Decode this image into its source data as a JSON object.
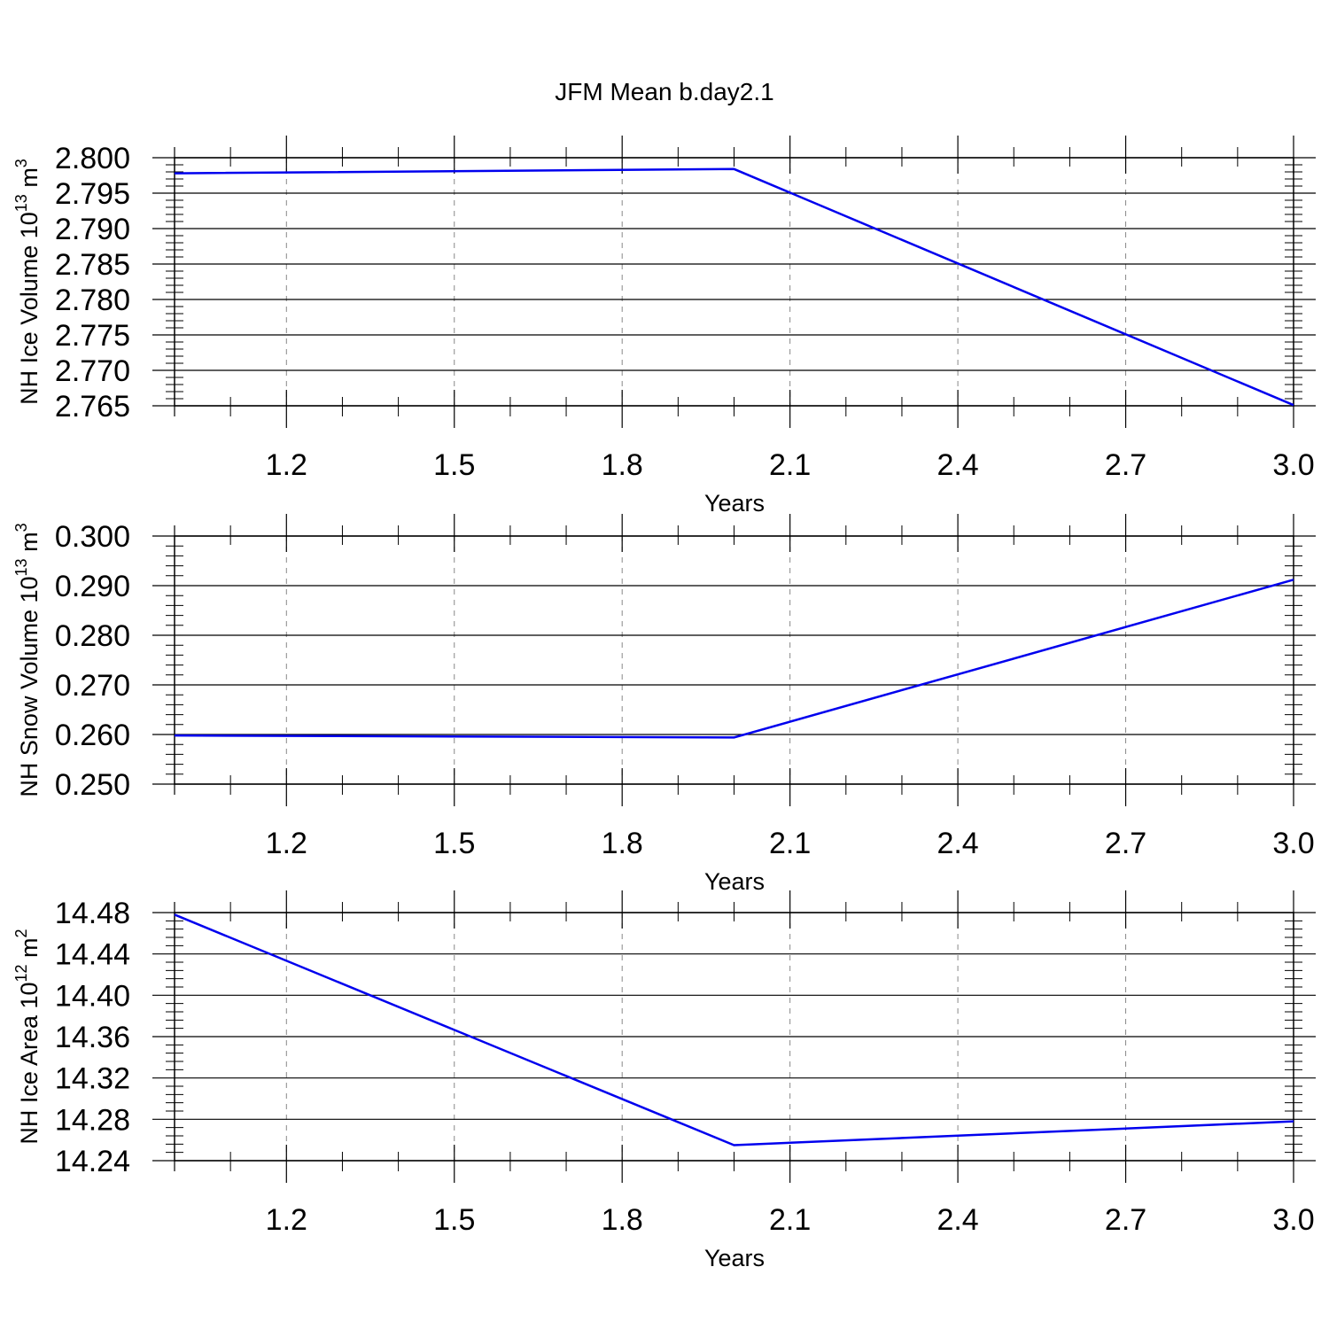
{
  "title": "JFM Mean b.day2.1",
  "colors": {
    "line": "#0000ee",
    "axis": "#000000",
    "grid": "#888888"
  },
  "chart_data": [
    {
      "type": "line",
      "xlabel": "Years",
      "ylabel": "NH Ice Volume 10",
      "ylabel_exp": "13",
      "ylabel_unit": " m",
      "ylabel_unit_exp": "3",
      "xlim": [
        1.0,
        3.0
      ],
      "ylim": [
        2.765,
        2.8
      ],
      "x_ticks": [
        1.2,
        1.5,
        1.8,
        2.1,
        2.4,
        2.7,
        3.0
      ],
      "x_tick_labels": [
        "1.2",
        "1.5",
        "1.8",
        "2.1",
        "2.4",
        "2.7",
        "3.0"
      ],
      "y_ticks": [
        2.765,
        2.77,
        2.775,
        2.78,
        2.785,
        2.79,
        2.795,
        2.8
      ],
      "y_tick_labels": [
        "2.765",
        "2.770",
        "2.775",
        "2.780",
        "2.785",
        "2.790",
        "2.795",
        "2.800"
      ],
      "grid": "x-dashed",
      "series": [
        {
          "x": [
            1.0,
            2.0,
            3.0
          ],
          "y": [
            2.7978,
            2.7984,
            2.7651
          ]
        }
      ]
    },
    {
      "type": "line",
      "xlabel": "Years",
      "ylabel": "NH Snow Volume 10",
      "ylabel_exp": "13",
      "ylabel_unit": " m",
      "ylabel_unit_exp": "3",
      "xlim": [
        1.0,
        3.0
      ],
      "ylim": [
        0.25,
        0.3
      ],
      "x_ticks": [
        1.2,
        1.5,
        1.8,
        2.1,
        2.4,
        2.7,
        3.0
      ],
      "x_tick_labels": [
        "1.2",
        "1.5",
        "1.8",
        "2.1",
        "2.4",
        "2.7",
        "3.0"
      ],
      "y_ticks": [
        0.25,
        0.26,
        0.27,
        0.28,
        0.29,
        0.3
      ],
      "y_tick_labels": [
        "0.250",
        "0.260",
        "0.270",
        "0.280",
        "0.290",
        "0.300"
      ],
      "grid": "x-dashed",
      "series": [
        {
          "x": [
            1.0,
            2.0,
            3.0
          ],
          "y": [
            0.2598,
            0.2594,
            0.2912
          ]
        }
      ]
    },
    {
      "type": "line",
      "xlabel": "Years",
      "ylabel": "NH Ice Area 10",
      "ylabel_exp": "12",
      "ylabel_unit": " m",
      "ylabel_unit_exp": "2",
      "xlim": [
        1.0,
        3.0
      ],
      "ylim": [
        14.24,
        14.48
      ],
      "x_ticks": [
        1.2,
        1.5,
        1.8,
        2.1,
        2.4,
        2.7,
        3.0
      ],
      "x_tick_labels": [
        "1.2",
        "1.5",
        "1.8",
        "2.1",
        "2.4",
        "2.7",
        "3.0"
      ],
      "y_ticks": [
        14.24,
        14.28,
        14.32,
        14.36,
        14.4,
        14.44,
        14.48
      ],
      "y_tick_labels": [
        "14.24",
        "14.28",
        "14.32",
        "14.36",
        "14.40",
        "14.44",
        "14.48"
      ],
      "grid": "x-dashed",
      "series": [
        {
          "x": [
            1.0,
            2.0,
            3.0
          ],
          "y": [
            14.478,
            14.255,
            14.278
          ]
        }
      ]
    }
  ]
}
